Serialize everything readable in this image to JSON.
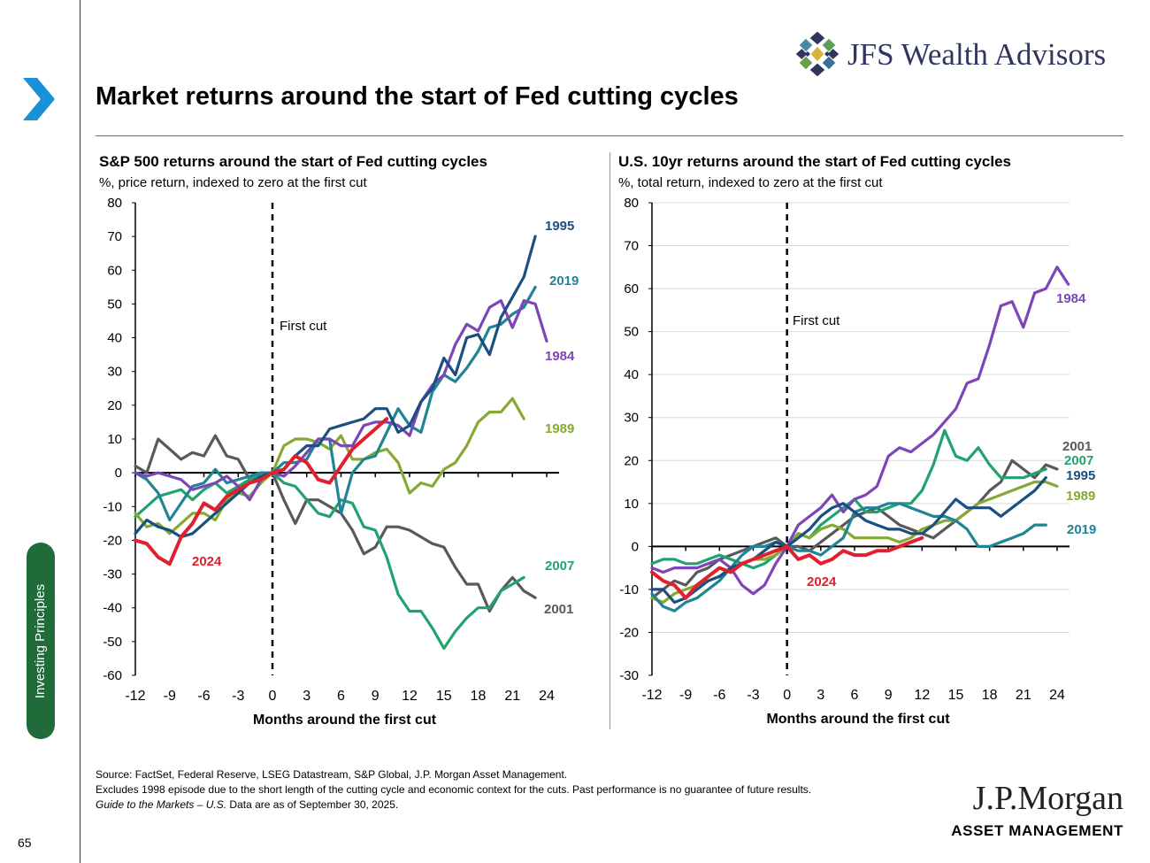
{
  "page": {
    "title": "Market returns around the start of Fed cutting cycles",
    "page_number": "65",
    "side_tab": "Investing Principles",
    "brand": "JFS Wealth Advisors",
    "footer_logo": "J.P.Morgan",
    "footer_logo_sub": "ASSET MANAGEMENT",
    "footnotes": {
      "source": "Source: FactSet, Federal Reserve, LSEG Datastream, S&P Global, J.P. Morgan Asset Management.",
      "excludes": "Excludes 1998 episode due to the short length of the cutting cycle and economic context for the cuts. Past performance is no guarantee of future results.",
      "guide_italic": "Guide to the Markets – U.S.",
      "guide_rest": " Data are as of September 30, 2025."
    }
  },
  "colors": {
    "1995": "#1b4f80",
    "2019": "#1f8592",
    "1984": "#7d45b8",
    "1989": "#86a933",
    "2007": "#21a36d",
    "2001": "#595959",
    "2024": "#e0202e",
    "brand_navy": "#30355f",
    "tab_green": "#1f6b3a",
    "arrow_blue": "#1a90d8"
  },
  "chart_data": [
    {
      "type": "line",
      "title": "S&P 500 returns around the start of Fed cutting cycles",
      "subtitle": "%, price return, indexed to zero at the first cut",
      "xlabel": "Months around the first cut",
      "ylabel": "",
      "xlim": [
        -12,
        24
      ],
      "ylim": [
        -60,
        80
      ],
      "xticks": [
        -12,
        -9,
        -6,
        -3,
        0,
        3,
        6,
        9,
        12,
        15,
        18,
        21,
        24
      ],
      "yticks": [
        -60,
        -50,
        -40,
        -30,
        -20,
        -10,
        0,
        10,
        20,
        30,
        40,
        50,
        60,
        70,
        80
      ],
      "grid": false,
      "annotation": "First cut",
      "series": [
        {
          "name": "1984",
          "start": -12,
          "values": [
            0,
            -1,
            0,
            -1,
            -2,
            -5,
            -4,
            -3,
            -1,
            -4,
            -8,
            -2,
            0,
            -1,
            2,
            6,
            10,
            10,
            8,
            8,
            14,
            15,
            15,
            14,
            11,
            21,
            26,
            29,
            38,
            44,
            42,
            49,
            51,
            43,
            51,
            50,
            39
          ]
        },
        {
          "name": "1989",
          "start": -12,
          "values": [
            -12,
            -16,
            -15,
            -18,
            -15,
            -12,
            -12,
            -14,
            -8,
            -6,
            -7,
            -3,
            0,
            8,
            10,
            10,
            9,
            7,
            11,
            4,
            4,
            6,
            7,
            3,
            -6,
            -3,
            -4,
            1,
            3,
            8,
            15,
            18,
            18,
            22,
            16
          ]
        },
        {
          "name": "1995",
          "start": -12,
          "values": [
            -18,
            -14,
            -16,
            -17,
            -19,
            -18,
            -15,
            -12,
            -9,
            -6,
            -3,
            -1,
            0,
            1,
            5,
            8,
            8,
            13,
            14,
            15,
            16,
            19,
            19,
            12,
            14,
            21,
            25,
            34,
            29,
            40,
            41,
            35,
            46,
            52,
            58,
            70
          ]
        },
        {
          "name": "2019",
          "start": -12,
          "values": [
            0,
            -2,
            -6,
            -14,
            -9,
            -4,
            -3,
            1,
            -3,
            -2,
            -1,
            0,
            0,
            3,
            3,
            4,
            10,
            10,
            -12,
            0,
            4,
            5,
            12,
            19,
            14,
            12,
            24,
            29,
            27,
            31,
            36,
            43,
            44,
            47,
            49,
            55
          ]
        },
        {
          "name": "2007",
          "start": -12,
          "values": [
            -13,
            -10,
            -7,
            -6,
            -5,
            -8,
            -5,
            -3,
            -6,
            -4,
            -2,
            0,
            0,
            -3,
            -4,
            -8,
            -12,
            -13,
            -8,
            -9,
            -16,
            -17,
            -25,
            -36,
            -41,
            -41,
            -46,
            -52,
            -47,
            -43,
            -40,
            -40,
            -35,
            -33,
            -31
          ]
        },
        {
          "name": "2001",
          "start": -12,
          "values": [
            2,
            0,
            10,
            7,
            4,
            6,
            5,
            11,
            5,
            4,
            -2,
            0,
            0,
            -8,
            -15,
            -8,
            -8,
            -10,
            -12,
            -17,
            -24,
            -22,
            -16,
            -16,
            -17,
            -19,
            -21,
            -22,
            -28,
            -33,
            -33,
            -41,
            -35,
            -31,
            -35,
            -37
          ]
        },
        {
          "name": "2024",
          "start": -12,
          "values": [
            -20,
            -21,
            -25,
            -27,
            -19,
            -15,
            -9,
            -11,
            -7,
            -5,
            -3,
            -2,
            0,
            1,
            5,
            3,
            -2,
            -3,
            2,
            7,
            10,
            13,
            16
          ]
        }
      ]
    },
    {
      "type": "line",
      "title": "U.S. 10yr returns around the start of Fed cutting cycles",
      "subtitle": "%, total return, indexed to zero at the first cut",
      "xlabel": "Months around the first cut",
      "ylabel": "",
      "xlim": [
        -12,
        24
      ],
      "ylim": [
        -30,
        80
      ],
      "xticks": [
        -12,
        -9,
        -6,
        -3,
        0,
        3,
        6,
        9,
        12,
        15,
        18,
        21,
        24
      ],
      "yticks": [
        -30,
        -20,
        -10,
        0,
        10,
        20,
        30,
        40,
        50,
        60,
        70,
        80
      ],
      "grid": true,
      "annotation": "First cut",
      "series": [
        {
          "name": "1984",
          "start": -12,
          "values": [
            -5,
            -6,
            -5,
            -5,
            -5,
            -4,
            -3,
            -5,
            -9,
            -11,
            -9,
            -4,
            0,
            5,
            7,
            9,
            12,
            8,
            11,
            12,
            14,
            21,
            23,
            22,
            24,
            26,
            29,
            32,
            38,
            39,
            47,
            56,
            57,
            51,
            59,
            60,
            65,
            61
          ]
        },
        {
          "name": "1989",
          "start": -12,
          "values": [
            -12,
            -13,
            -11,
            -10,
            -9,
            -8,
            -7,
            -5,
            -4,
            -3,
            -3,
            -2,
            0,
            3,
            2,
            4,
            5,
            4,
            2,
            2,
            2,
            2,
            1,
            2,
            4,
            5,
            6,
            6,
            8,
            10,
            11,
            12,
            13,
            14,
            15,
            15,
            14
          ]
        },
        {
          "name": "1995",
          "start": -12,
          "values": [
            -10,
            -10,
            -13,
            -12,
            -10,
            -8,
            -7,
            -5,
            -4,
            -3,
            -1,
            1,
            0,
            2,
            4,
            7,
            9,
            10,
            8,
            6,
            5,
            4,
            4,
            3,
            3,
            5,
            8,
            11,
            9,
            9,
            9,
            7,
            9,
            11,
            13,
            16
          ]
        },
        {
          "name": "2019",
          "start": -12,
          "values": [
            -11,
            -14,
            -15,
            -13,
            -12,
            -10,
            -8,
            -5,
            -2,
            0,
            0,
            1,
            0,
            -1,
            -1,
            -2,
            0,
            2,
            8,
            9,
            9,
            10,
            10,
            9,
            8,
            7,
            7,
            6,
            4,
            0,
            0,
            1,
            2,
            3,
            5,
            5
          ]
        },
        {
          "name": "2007",
          "start": -12,
          "values": [
            -4,
            -3,
            -3,
            -4,
            -4,
            -3,
            -2,
            -3,
            -4,
            -5,
            -4,
            -2,
            0,
            3,
            2,
            5,
            7,
            9,
            11,
            8,
            8,
            9,
            10,
            10,
            13,
            19,
            27,
            21,
            20,
            23,
            19,
            16,
            16,
            16,
            17,
            18
          ]
        },
        {
          "name": "2001",
          "start": -12,
          "values": [
            -12,
            -10,
            -8,
            -9,
            -6,
            -5,
            -3,
            -2,
            -1,
            0,
            1,
            2,
            0,
            0,
            -1,
            1,
            3,
            5,
            7,
            8,
            9,
            7,
            5,
            4,
            3,
            2,
            4,
            6,
            8,
            10,
            13,
            15,
            20,
            18,
            16,
            19,
            18
          ]
        },
        {
          "name": "2024",
          "start": -12,
          "values": [
            -6,
            -8,
            -9,
            -12,
            -9,
            -7,
            -5,
            -6,
            -4,
            -3,
            -2,
            -1,
            0,
            -3,
            -2,
            -4,
            -3,
            -1,
            -2,
            -2,
            -1,
            -1,
            0,
            1,
            2
          ]
        }
      ]
    }
  ]
}
